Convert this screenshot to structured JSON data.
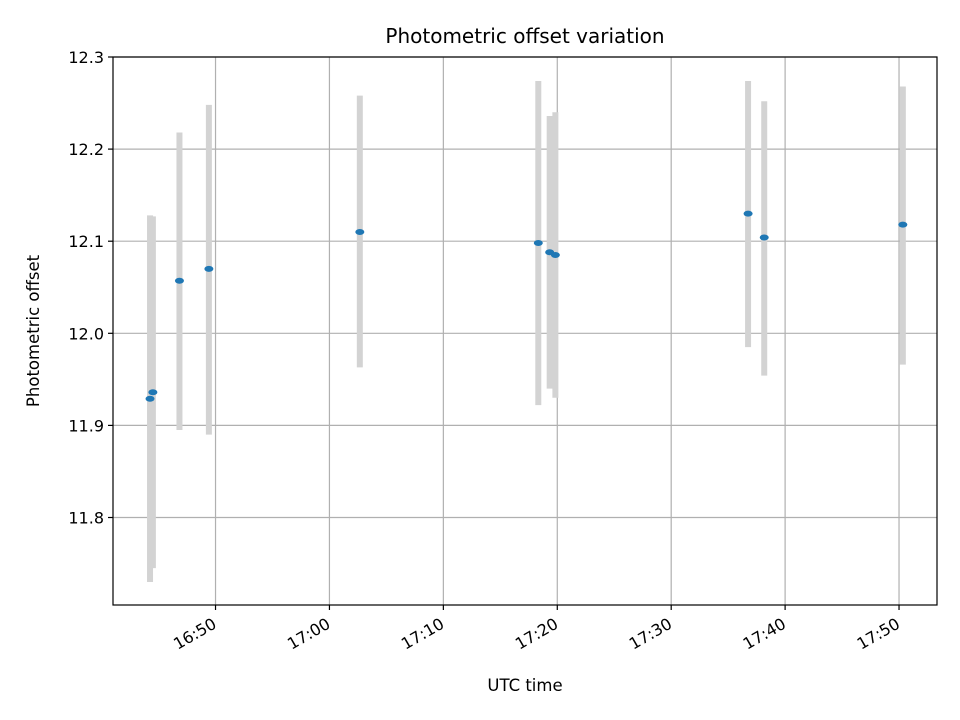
{
  "chart_data": {
    "type": "scatter",
    "title": "Photometric offset variation",
    "xlabel": "UTC time",
    "ylabel": "Photometric offset",
    "xlim": [
      "16:41:00",
      "17:53:20"
    ],
    "ylim": [
      11.705,
      12.3
    ],
    "grid": true,
    "x_ticks": [
      "16:50",
      "17:00",
      "17:10",
      "17:20",
      "17:30",
      "17:40",
      "17:50"
    ],
    "y_ticks": [
      11.8,
      11.9,
      12.0,
      12.1,
      12.2,
      12.3
    ],
    "y_tick_labels": [
      "11.8",
      "11.9",
      "12.0",
      "12.1",
      "12.2",
      "12.3"
    ],
    "point_color": "#1f77b4",
    "errorbar_color": "#d3d3d3",
    "points": [
      {
        "t": "16:44:15",
        "y": 11.929,
        "ylow": 11.73,
        "yhigh": 12.128
      },
      {
        "t": "16:44:30",
        "y": 11.936,
        "ylow": 11.745,
        "yhigh": 12.127
      },
      {
        "t": "16:46:50",
        "y": 12.057,
        "ylow": 11.895,
        "yhigh": 12.218
      },
      {
        "t": "16:49:25",
        "y": 12.07,
        "ylow": 11.89,
        "yhigh": 12.248
      },
      {
        "t": "17:02:40",
        "y": 12.11,
        "ylow": 11.963,
        "yhigh": 12.258
      },
      {
        "t": "17:18:20",
        "y": 12.098,
        "ylow": 11.922,
        "yhigh": 12.274
      },
      {
        "t": "17:19:20",
        "y": 12.088,
        "ylow": 11.94,
        "yhigh": 12.236
      },
      {
        "t": "17:19:50",
        "y": 12.085,
        "ylow": 11.93,
        "yhigh": 12.24
      },
      {
        "t": "17:36:45",
        "y": 12.13,
        "ylow": 11.985,
        "yhigh": 12.274
      },
      {
        "t": "17:38:10",
        "y": 12.104,
        "ylow": 11.954,
        "yhigh": 12.252
      },
      {
        "t": "17:50:20",
        "y": 12.118,
        "ylow": 11.966,
        "yhigh": 12.268
      }
    ]
  }
}
